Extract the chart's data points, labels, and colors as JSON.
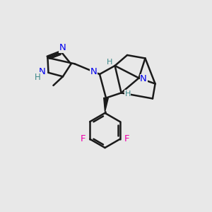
{
  "bg_color": "#e8e8e8",
  "bond_color": "#1a1a1a",
  "N_color": "#0000ee",
  "H_color": "#3d8888",
  "F_color": "#ee00aa",
  "lw": 1.8,
  "fig_size": [
    3.0,
    3.0
  ],
  "dpi": 100,
  "xlim": [
    0,
    10
  ],
  "ylim": [
    0,
    10
  ]
}
